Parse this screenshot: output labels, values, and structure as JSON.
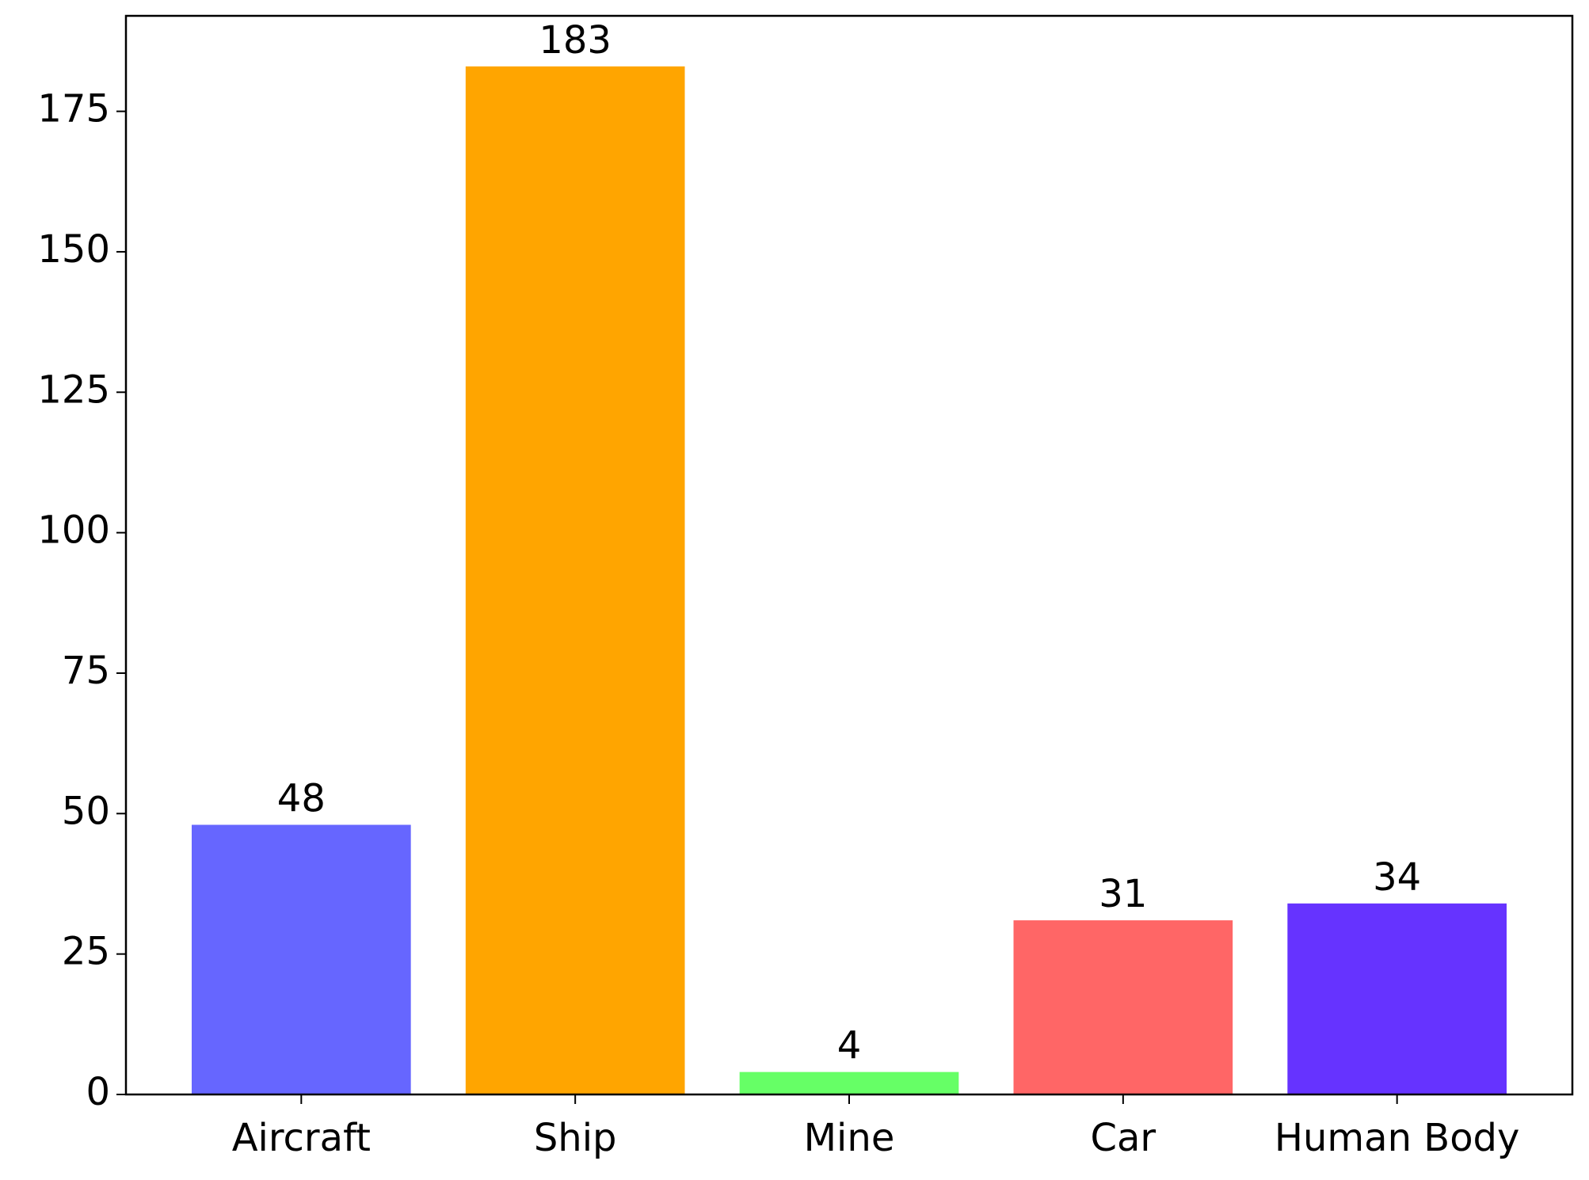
{
  "chart_data": {
    "type": "bar",
    "categories": [
      "Aircraft",
      "Ship",
      "Mine",
      "Car",
      "Human Body"
    ],
    "values": [
      48,
      183,
      4,
      31,
      34
    ],
    "colors": [
      "#6666ff",
      "#ffa500",
      "#66ff66",
      "#ff6666",
      "#6633ff"
    ],
    "ylim": [
      0,
      192
    ],
    "yticks": [
      0,
      25,
      50,
      75,
      100,
      125,
      150,
      175
    ],
    "grid": false
  }
}
